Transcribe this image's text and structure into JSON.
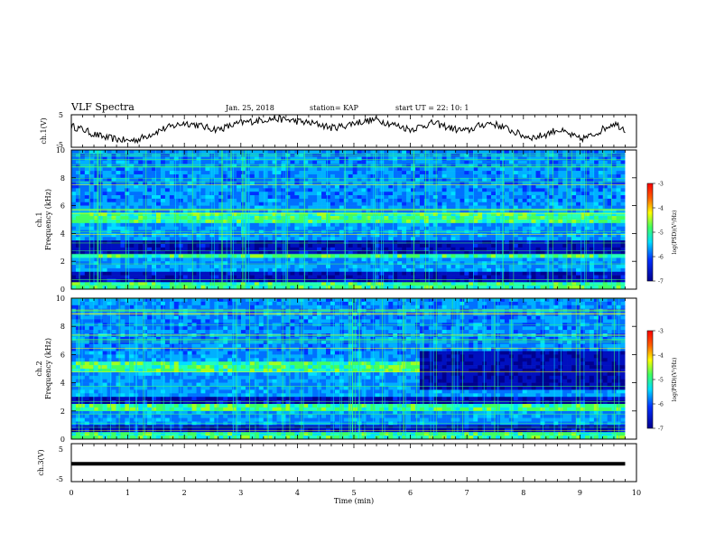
{
  "header": {
    "title": "VLF Spectra",
    "date": "Jan. 25, 2018",
    "station": "station= KAP",
    "start": "start  UT =  22: 10: 1"
  },
  "chart_data": [
    {
      "type": "line",
      "panel": "ch1-voltage",
      "ylabel": "ch.1(V)",
      "ylim": [
        -5,
        5
      ],
      "yticks": [
        "5",
        "-5"
      ],
      "xlim": [
        0,
        10
      ],
      "t": [
        0.0,
        0.2,
        0.4,
        0.6,
        0.8,
        1.0,
        1.2,
        1.4,
        1.6,
        1.8,
        2.0,
        2.2,
        2.4,
        2.6,
        2.8,
        3.0,
        3.2,
        3.4,
        3.6,
        3.8,
        4.0,
        4.2,
        4.4,
        4.6,
        4.8,
        5.0,
        5.2,
        5.4,
        5.6,
        5.8,
        6.0,
        6.2,
        6.4,
        6.6,
        6.8,
        7.0,
        7.2,
        7.4,
        7.6,
        7.8,
        8.0,
        8.2,
        8.4,
        8.6,
        8.8,
        9.0,
        9.2,
        9.4,
        9.6,
        9.8
      ],
      "values": [
        1.5,
        0.5,
        -1.0,
        -2.0,
        -2.5,
        -3.0,
        -2.5,
        -1.0,
        0.5,
        1.5,
        2.5,
        2.0,
        1.0,
        0.5,
        1.5,
        2.5,
        3.0,
        3.5,
        3.8,
        3.5,
        3.0,
        2.5,
        2.0,
        1.0,
        1.5,
        2.5,
        3.0,
        3.5,
        2.5,
        1.5,
        0.5,
        1.5,
        2.5,
        1.5,
        0.5,
        0.0,
        1.5,
        2.5,
        1.5,
        0.0,
        -1.5,
        -2.0,
        -1.0,
        0.5,
        -1.0,
        -2.5,
        -1.5,
        0.5,
        2.5,
        0.5
      ]
    },
    {
      "type": "heatmap",
      "panel": "ch1-spectrogram",
      "ylabel": "ch.1\nFrequency (kHz)",
      "ylim": [
        0,
        10
      ],
      "yticks": [
        "0",
        "2",
        "4",
        "6",
        "8",
        "10"
      ],
      "xlim": [
        0,
        10
      ],
      "colorbar": {
        "label": "log(PSD)(V²/Hz)",
        "range": [
          -7,
          -3
        ],
        "ticks": [
          "-3",
          "-4",
          "-5",
          "-6",
          "-7"
        ]
      },
      "quiet_bands_khz": [
        [
          2.6,
          3.4
        ],
        [
          0.6,
          1.2
        ]
      ],
      "active_bands_khz": [
        [
          4.8,
          5.4
        ],
        [
          2.2,
          2.6
        ],
        [
          0.0,
          0.4
        ]
      ]
    },
    {
      "type": "heatmap",
      "panel": "ch2-spectrogram",
      "ylabel": "ch.2\nFrequency (kHz)",
      "ylim": [
        0,
        10
      ],
      "yticks": [
        "0",
        "2",
        "4",
        "6",
        "8",
        "10"
      ],
      "xlim": [
        0,
        10
      ],
      "colorbar": {
        "label": "log(PSD)(V²/Hz)",
        "range": [
          -7,
          -3
        ],
        "ticks": [
          "-3",
          "-4",
          "-5",
          "-6",
          "-7"
        ]
      },
      "quiet_bands_khz": [
        [
          2.4,
          3.0
        ],
        [
          0.6,
          1.0
        ]
      ],
      "active_bands_khz": [
        [
          4.8,
          5.4
        ],
        [
          2.0,
          2.4
        ],
        [
          0.0,
          0.4
        ]
      ],
      "regime_change_min": 6.15
    },
    {
      "type": "line",
      "panel": "ch3-voltage",
      "ylabel": "ch.3(V)",
      "ylim": [
        -5,
        5
      ],
      "yticks": [
        "5",
        "-5"
      ],
      "xlim": [
        0,
        10
      ],
      "constant_value": -0.3,
      "xlabel": "Time  (min)",
      "xticks": [
        "0",
        "1",
        "2",
        "3",
        "4",
        "5",
        "6",
        "7",
        "8",
        "9",
        "10"
      ]
    }
  ]
}
